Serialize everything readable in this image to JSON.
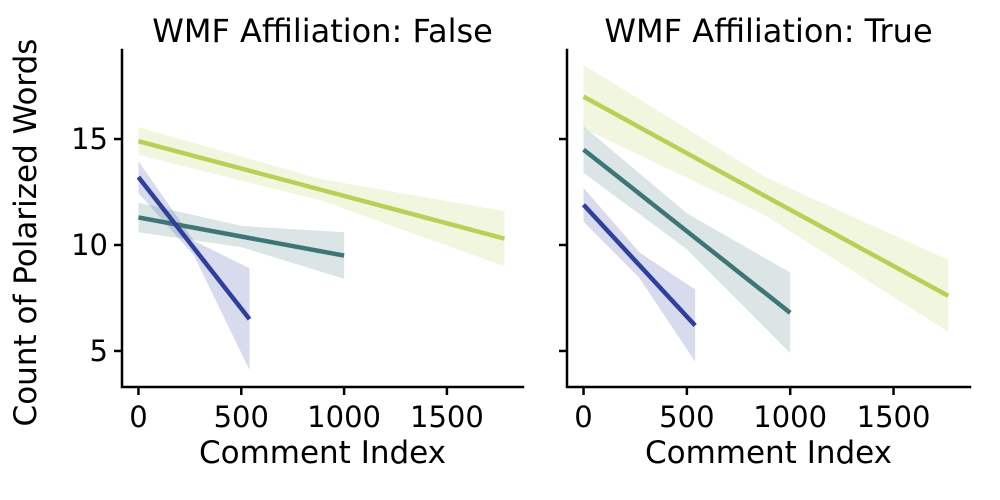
{
  "figure": {
    "ylabel": "Count of Polarized Words",
    "background_color": "#ffffff",
    "text_color": "#000000",
    "axis_color": "#000000"
  },
  "chart_data": [
    {
      "type": "line",
      "title": "WMF Affiliation: False",
      "xlabel": "Comment Index",
      "ylabel": "Count of Polarized Words",
      "xlim": [
        -80,
        1870
      ],
      "ylim": [
        3.3,
        19.2
      ],
      "xticks": [
        0,
        500,
        1000,
        1500
      ],
      "yticks": [
        5,
        10,
        15
      ],
      "grid": false,
      "legend": "none",
      "series": [
        {
          "id": "dark-blue",
          "color": "#2e3f9e",
          "x": [
            0,
            270,
            540
          ],
          "y": [
            13.2,
            9.85,
            6.5
          ],
          "ci_half_width": [
            0.75,
            0.35,
            2.4
          ]
        },
        {
          "id": "teal",
          "color": "#3f7577",
          "x": [
            0,
            500,
            1000
          ],
          "y": [
            11.3,
            10.4,
            9.5
          ],
          "ci_half_width": [
            0.7,
            0.5,
            1.1
          ]
        },
        {
          "id": "yellow-green",
          "color": "#b7d156",
          "x": [
            0,
            890,
            1780
          ],
          "y": [
            14.9,
            12.6,
            10.3
          ],
          "ci_half_width": [
            0.65,
            0.5,
            1.3
          ]
        }
      ]
    },
    {
      "type": "line",
      "title": "WMF Affiliation: True",
      "xlabel": "Comment Index",
      "ylabel": "Count of Polarized Words",
      "xlim": [
        -80,
        1870
      ],
      "ylim": [
        3.3,
        19.2
      ],
      "xticks": [
        0,
        500,
        1000,
        1500
      ],
      "yticks": [
        5,
        10,
        15
      ],
      "grid": false,
      "legend": "none",
      "series": [
        {
          "id": "dark-blue",
          "color": "#2e3f9e",
          "x": [
            0,
            270,
            540
          ],
          "y": [
            11.9,
            9.05,
            6.2
          ],
          "ci_half_width": [
            0.8,
            0.6,
            1.7
          ]
        },
        {
          "id": "teal",
          "color": "#3f7577",
          "x": [
            0,
            500,
            1000
          ],
          "y": [
            14.5,
            10.65,
            6.8
          ],
          "ci_half_width": [
            1.1,
            0.85,
            1.9
          ]
        },
        {
          "id": "yellow-green",
          "color": "#b7d156",
          "x": [
            0,
            880,
            1765
          ],
          "y": [
            17.0,
            12.3,
            7.6
          ],
          "ci_half_width": [
            1.5,
            0.9,
            1.7
          ]
        }
      ]
    }
  ]
}
